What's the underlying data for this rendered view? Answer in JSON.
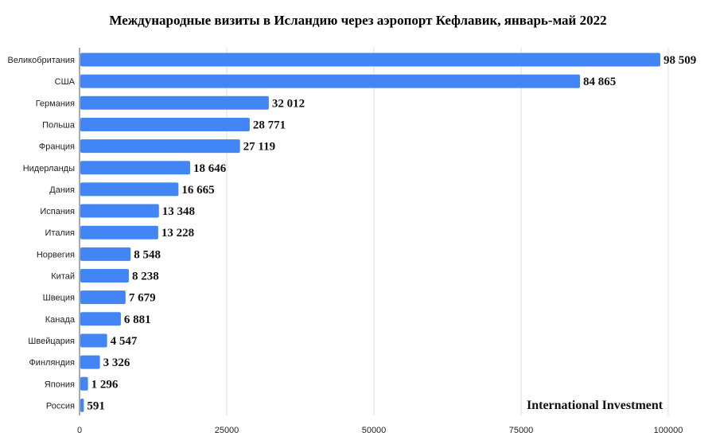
{
  "chart_data": {
    "type": "bar",
    "orientation": "horizontal",
    "title": "Международные визиты в Исландию через аэропорт Кефлавик, январь-май 2022",
    "categories": [
      "Великобритания",
      "США",
      "Германия",
      "Польша",
      "Франция",
      "Нидерланды",
      "Дания",
      "Испания",
      "Италия",
      "Норвегия",
      "Китай",
      "Швеция",
      "Канада",
      "Швейцария",
      "Финляндия",
      "Япония",
      "Россия"
    ],
    "values": [
      98509,
      84865,
      32012,
      28771,
      27119,
      18646,
      16665,
      13348,
      13228,
      8548,
      8238,
      7679,
      6881,
      4547,
      3326,
      1296,
      591
    ],
    "data_labels": [
      "98 509",
      "84 865",
      "32 012",
      "28 771",
      "27 119",
      "18 646",
      "16 665",
      "13 348",
      "13 228",
      "8 548",
      "8 238",
      "7 679",
      "6 881",
      "4 547",
      "3 326",
      "1 296",
      "591"
    ],
    "xlim": [
      0,
      100000
    ],
    "xticks": [
      "0",
      "25000",
      "50000",
      "75000",
      "100000"
    ],
    "xlabel": "",
    "ylabel": "",
    "grid": true,
    "bar_color": "#4285f4"
  },
  "watermark": "International Investment"
}
